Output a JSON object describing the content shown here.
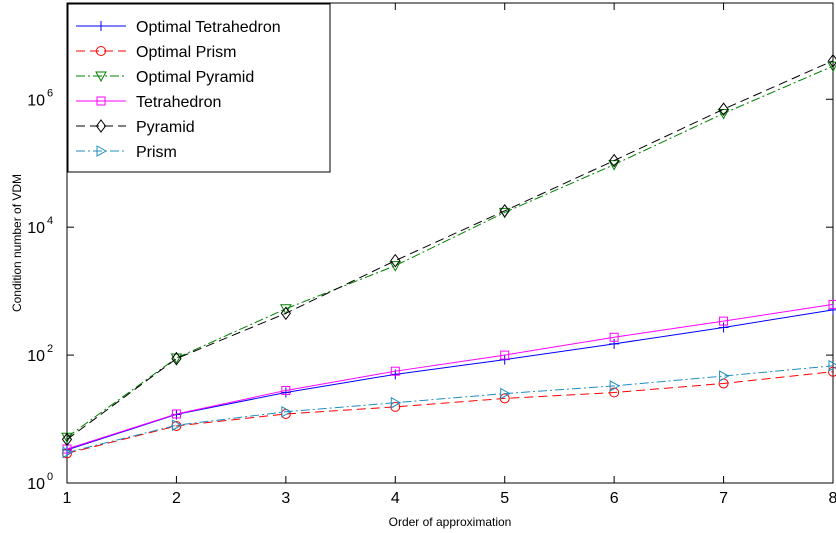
{
  "chart_data": {
    "type": "line",
    "xlabel": "Order of approximation",
    "ylabel": "Condition number of VDM",
    "x": [
      1,
      2,
      3,
      4,
      5,
      6,
      7,
      8
    ],
    "xlim": [
      1,
      8
    ],
    "ylim": [
      1,
      32000000
    ],
    "yscale": "log",
    "x_ticks": [
      "1",
      "2",
      "3",
      "4",
      "5",
      "6",
      "7",
      "8"
    ],
    "y_ticks": [
      {
        "value": 1,
        "base": "10",
        "exp": "0"
      },
      {
        "value": 100,
        "base": "10",
        "exp": "2"
      },
      {
        "value": 10000,
        "base": "10",
        "exp": "4"
      },
      {
        "value": 1000000,
        "base": "10",
        "exp": "6"
      }
    ],
    "legend_position": "top-left",
    "grid": false,
    "series": [
      {
        "name": "Optimal Tetrahedron",
        "color": "#0000ff",
        "dash": "",
        "marker": "plus",
        "values": [
          3.3,
          11.8,
          26,
          50,
          85,
          150,
          270,
          510
        ]
      },
      {
        "name": "Optimal Prism",
        "color": "#ff0000",
        "dash": "9,5",
        "marker": "circle",
        "values": [
          2.9,
          7.8,
          12,
          15.5,
          21,
          26,
          36,
          55
        ]
      },
      {
        "name": "Optimal Pyramid",
        "color": "#008000",
        "dash": "9,3,2,3",
        "marker": "triangle-down",
        "values": [
          5.2,
          90,
          530,
          2500,
          17000,
          95000,
          600000,
          3300000
        ]
      },
      {
        "name": "Tetrahedron",
        "color": "#ff00ff",
        "dash": "",
        "marker": "square",
        "values": [
          3.4,
          12,
          28,
          56,
          100,
          190,
          340,
          620
        ]
      },
      {
        "name": "Pyramid",
        "color": "#000000",
        "dash": "9,5",
        "marker": "diamond",
        "values": [
          4.8,
          88,
          450,
          3000,
          18000,
          110000,
          700000,
          4000000
        ]
      },
      {
        "name": "Prism",
        "color": "#1f8fbf",
        "dash": "9,3,2,3",
        "marker": "triangle-right",
        "values": [
          3.0,
          8,
          13,
          18,
          25,
          33,
          47,
          68
        ]
      }
    ]
  }
}
